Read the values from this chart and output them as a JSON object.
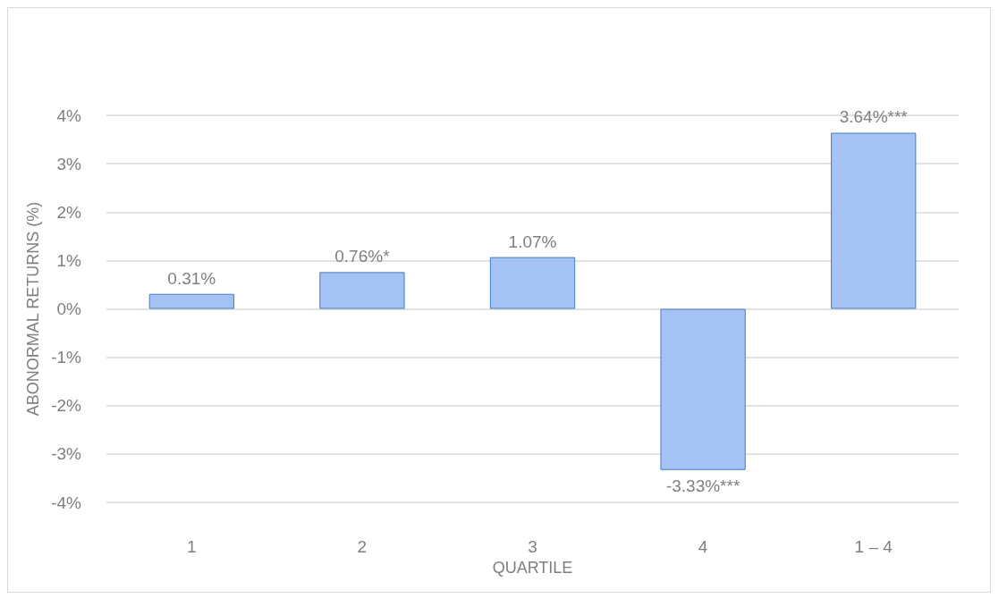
{
  "chart_data": {
    "type": "bar",
    "xlabel": "QUARTILE",
    "ylabel": "ABONORMAL RETURNS (%)",
    "categories": [
      "1",
      "2",
      "3",
      "4",
      "1 – 4"
    ],
    "values": [
      0.31,
      0.76,
      1.07,
      -3.33,
      3.64
    ],
    "value_labels": [
      "0.31%",
      "0.76%*",
      "1.07%",
      "-3.33%***",
      "3.64%***"
    ],
    "color": "#a4c2f4",
    "ylim": [
      -4,
      4
    ],
    "yticks": [
      {
        "value": -4,
        "label": "-4%"
      },
      {
        "value": -3,
        "label": "-3%"
      },
      {
        "value": -2,
        "label": "-2%"
      },
      {
        "value": -1,
        "label": "-1%"
      },
      {
        "value": 0,
        "label": "0%"
      },
      {
        "value": 1,
        "label": "1%"
      },
      {
        "value": 2,
        "label": "2%"
      },
      {
        "value": 3,
        "label": "3%"
      },
      {
        "value": 4,
        "label": "4%"
      }
    ],
    "grid": "y"
  }
}
